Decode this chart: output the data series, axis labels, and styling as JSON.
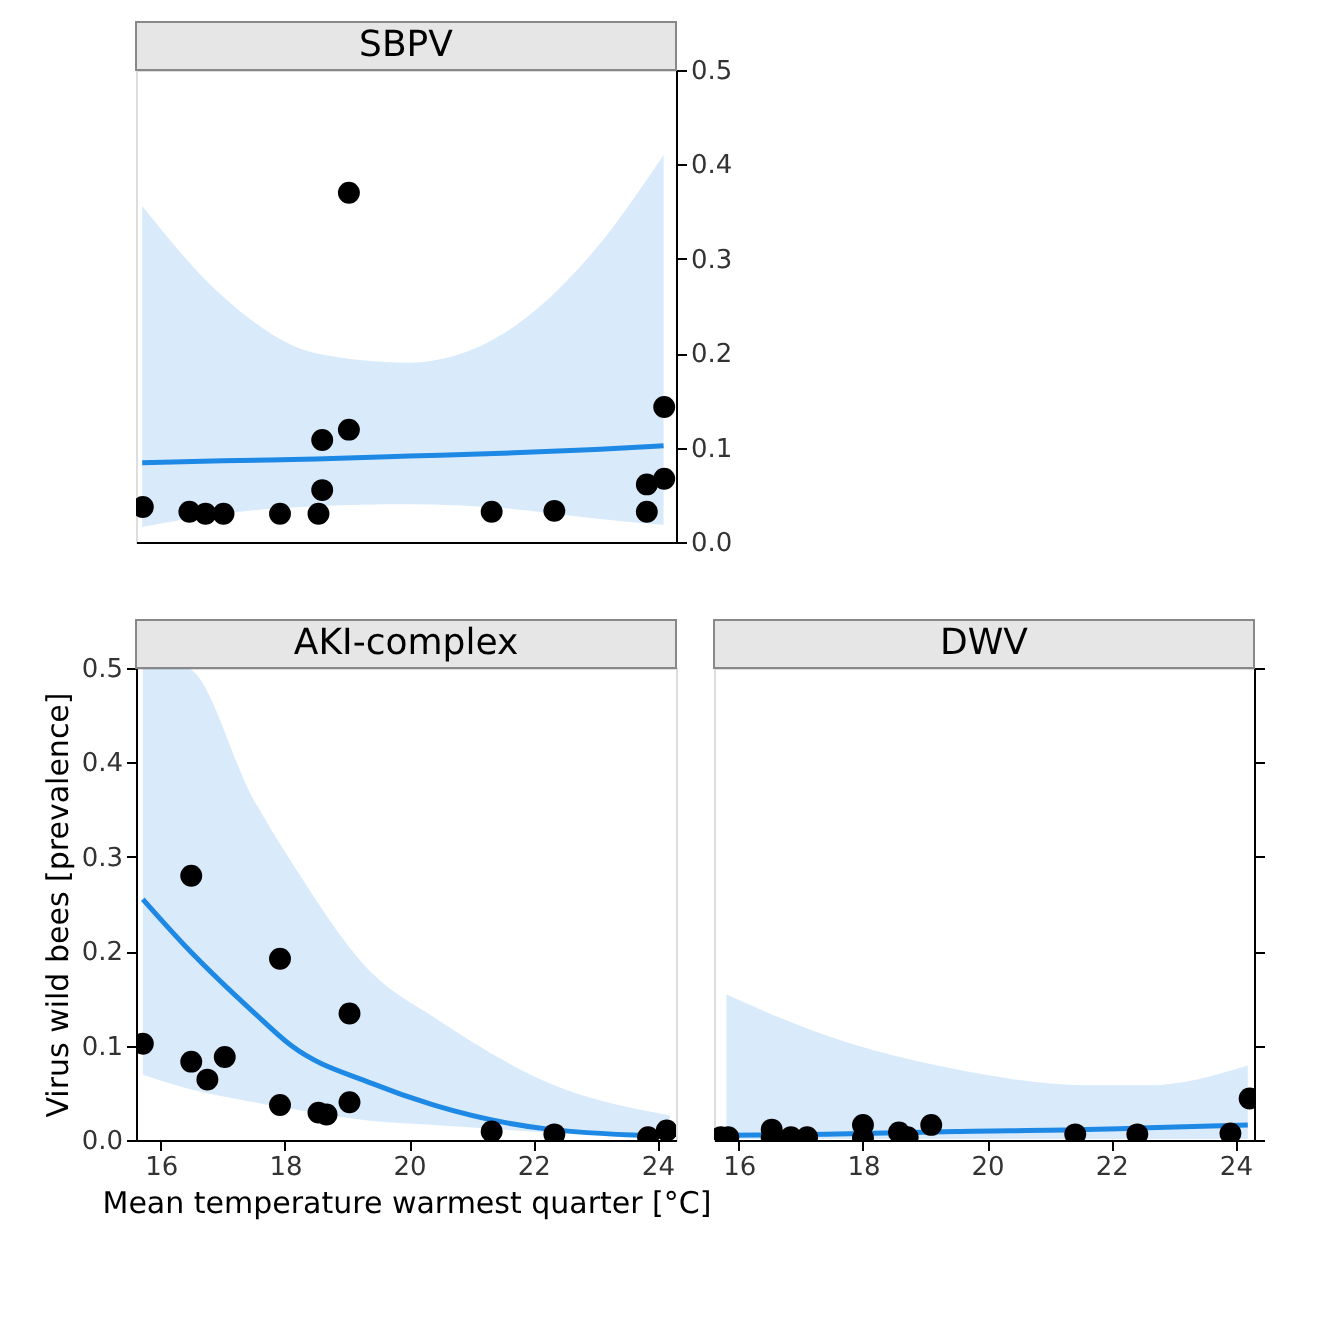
{
  "chart_data": [
    {
      "type": "scatter",
      "title": "SBPV",
      "xlim": [
        15.6,
        24.3
      ],
      "ylim": [
        0,
        0.5
      ],
      "yticks": [
        {
          "value": 0,
          "label": "0.0"
        },
        0.1,
        0.2,
        0.3,
        0.4,
        0.5
      ],
      "tick_labels": "y",
      "grid": false,
      "series": [
        {
          "type": "line",
          "marker": "none",
          "color": "#1e88e5",
          "x": [
            15.7,
            17,
            18.5,
            20,
            21.5,
            23,
            24.1
          ],
          "values": [
            0.084,
            0.086,
            0.088,
            0.091,
            0.094,
            0.098,
            0.102
          ],
          "lower": [
            0.016,
            0.03,
            0.038,
            0.04,
            0.036,
            0.025,
            0.018
          ],
          "upper": [
            0.356,
            0.26,
            0.2,
            0.19,
            0.22,
            0.31,
            0.41
          ]
        },
        {
          "marker": "circle",
          "color": "#000000",
          "x": [
            15.71,
            16.46,
            16.72,
            17.01,
            17.92,
            18.54,
            18.6,
            18.6,
            19.03,
            19.03,
            21.33,
            22.34,
            23.83,
            23.83,
            24.11,
            24.11
          ],
          "values": [
            0.037,
            0.032,
            0.03,
            0.03,
            0.03,
            0.03,
            0.055,
            0.108,
            0.119,
            0.37,
            0.032,
            0.033,
            0.032,
            0.061,
            0.067,
            0.143
          ]
        }
      ]
    },
    {
      "type": "scatter",
      "title": "AKI-complex",
      "xlabel": "Mean temperature warmest quarter [°C]",
      "ylabel": "Virus wild bees [prevalence]",
      "xlim": [
        15.6,
        24.3
      ],
      "xticks": [
        16,
        18,
        20,
        22,
        24
      ],
      "ylim": [
        0,
        0.5
      ],
      "yticks": [
        {
          "value": 0,
          "label": "0.0"
        },
        0.1,
        0.2,
        0.3,
        0.4,
        0.5
      ],
      "grid": false,
      "series": [
        {
          "type": "line",
          "marker": "none",
          "color": "#1e88e5",
          "x": [
            15.71,
            16.4,
            17.5,
            18.1,
            19.4,
            20.4,
            22.3,
            24.2
          ],
          "values": [
            0.255,
            0.205,
            0.135,
            0.1,
            0.06,
            0.037,
            0.011,
            0.004
          ],
          "lower": [
            0.069,
            0.055,
            0.04,
            0.033,
            0.02,
            0.016,
            0.008,
            0.004
          ],
          "upper": [
            0.5,
            0.5,
            0.36,
            0.295,
            0.177,
            0.13,
            0.059,
            0.026
          ]
        },
        {
          "marker": "circle",
          "color": "#000000",
          "x": [
            15.71,
            16.49,
            16.49,
            16.75,
            17.03,
            17.92,
            17.92,
            18.54,
            18.67,
            19.04,
            19.04,
            21.33,
            22.34,
            23.85,
            24.15
          ],
          "values": [
            0.102,
            0.28,
            0.083,
            0.064,
            0.088,
            0.192,
            0.037,
            0.029,
            0.027,
            0.134,
            0.04,
            0.009,
            0.006,
            0.003,
            0.01
          ]
        }
      ]
    },
    {
      "type": "scatter",
      "title": "DWV",
      "xlim": [
        15.6,
        24.3
      ],
      "xticks": [
        16,
        18,
        20,
        22,
        24
      ],
      "ylim": [
        0,
        0.5
      ],
      "yticks": [
        {
          "value": 0,
          "label": null
        },
        {
          "value": 0.1,
          "label": null
        },
        {
          "value": 0.2,
          "label": null
        },
        {
          "value": 0.3,
          "label": null
        },
        {
          "value": 0.4,
          "label": null
        },
        {
          "value": 0.5,
          "label": null
        }
      ],
      "tick_labels": "x",
      "grid": false,
      "series": [
        {
          "type": "line",
          "marker": "none",
          "color": "#1e88e5",
          "x": [
            15.8,
            17.4,
            19.5,
            21.6,
            22.6,
            24.2
          ],
          "values": [
            0.005,
            0.006,
            0.009,
            0.011,
            0.013,
            0.016
          ],
          "lower": [
            0.001,
            0.001,
            0.001,
            0.001,
            0.001,
            0.001
          ],
          "upper": [
            0.154,
            0.111,
            0.075,
            0.058,
            0.058,
            0.079
          ]
        },
        {
          "marker": "circle",
          "color": "#000000",
          "x": [
            15.71,
            15.83,
            16.53,
            16.53,
            16.84,
            17.1,
            18.0,
            18.0,
            18.58,
            18.72,
            19.1,
            21.42,
            22.42,
            23.92,
            24.23
          ],
          "values": [
            0.003,
            0.003,
            0.011,
            0.002,
            0.003,
            0.003,
            0.016,
            0.002,
            0.008,
            0.003,
            0.016,
            0.006,
            0.006,
            0.007,
            0.044
          ]
        }
      ]
    }
  ]
}
